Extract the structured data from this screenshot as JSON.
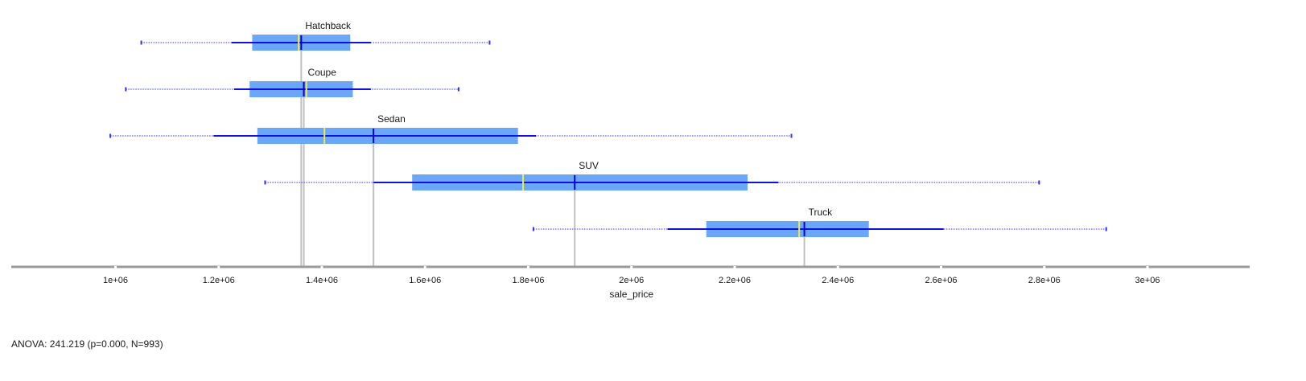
{
  "chart_data": {
    "type": "box",
    "orientation": "horizontal",
    "xlabel": "sale_price",
    "xlim": [
      800000,
      3200000
    ],
    "ticks": [
      {
        "value": 1000000,
        "label": "1e+06"
      },
      {
        "value": 1200000,
        "label": "1.2e+06"
      },
      {
        "value": 1400000,
        "label": "1.4e+06"
      },
      {
        "value": 1600000,
        "label": "1.6e+06"
      },
      {
        "value": 1800000,
        "label": "1.8e+06"
      },
      {
        "value": 2000000,
        "label": "2e+06"
      },
      {
        "value": 2200000,
        "label": "2.2e+06"
      },
      {
        "value": 2400000,
        "label": "2.4e+06"
      },
      {
        "value": 2600000,
        "label": "2.6e+06"
      },
      {
        "value": 2800000,
        "label": "2.8e+06"
      },
      {
        "value": 3000000,
        "label": "3e+06"
      }
    ],
    "groups": [
      {
        "name": "Hatchback",
        "min": 1050000,
        "sd_low": 1225000,
        "q1": 1265000,
        "median": 1355000,
        "mean": 1360000,
        "q3": 1455000,
        "sd_high": 1495000,
        "max": 1725000
      },
      {
        "name": "Coupe",
        "min": 1020000,
        "sd_low": 1230000,
        "q1": 1260000,
        "median": 1370000,
        "mean": 1365000,
        "q3": 1460000,
        "sd_high": 1495000,
        "max": 1665000
      },
      {
        "name": "Sedan",
        "min": 990000,
        "sd_low": 1190000,
        "q1": 1275000,
        "median": 1405000,
        "mean": 1500000,
        "q3": 1780000,
        "sd_high": 1815000,
        "max": 2310000
      },
      {
        "name": "SUV",
        "min": 1290000,
        "sd_low": 1500000,
        "q1": 1575000,
        "median": 1790000,
        "mean": 1890000,
        "q3": 2225000,
        "sd_high": 2285000,
        "max": 2790000
      },
      {
        "name": "Truck",
        "min": 1810000,
        "sd_low": 2070000,
        "q1": 2145000,
        "median": 2325000,
        "mean": 2335000,
        "q3": 2460000,
        "sd_high": 2605000,
        "max": 2920000
      }
    ],
    "colors": {
      "box": "#6aa7f8",
      "whisker_range": "#3030ff",
      "sd_line": "#1010e0",
      "mean": "#0000dd",
      "median": "#f2ec3a",
      "mean_line": "#c0c0c0",
      "axis": "#9a9a9a"
    },
    "grid": false,
    "legend": "none"
  },
  "stats": {
    "text": "ANOVA: 241.219 (p=0.000, N=993)"
  }
}
